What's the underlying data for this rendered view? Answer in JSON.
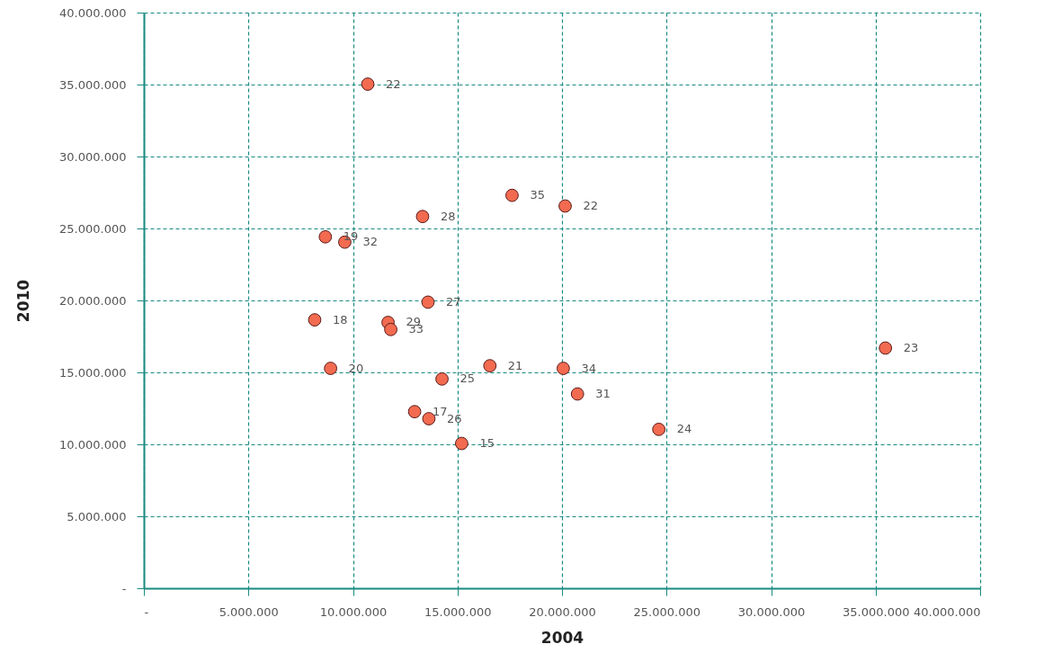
{
  "chart_data": {
    "type": "scatter",
    "xlabel": "2004",
    "ylabel": "2010",
    "x": [
      10710000,
      17610000,
      20150000,
      13330000,
      8680000,
      9610000,
      13590000,
      8170000,
      11680000,
      11810000,
      35470000,
      16550000,
      20060000,
      8930000,
      14260000,
      20740000,
      12950000,
      13630000,
      24630000,
      15200000
    ],
    "values": [
      35030000,
      27300000,
      26560000,
      25830000,
      24420000,
      24050000,
      19880000,
      18650000,
      18470000,
      17980000,
      16690000,
      15460000,
      15280000,
      15280000,
      14540000,
      13500000,
      12270000,
      11780000,
      11040000,
      10060000
    ],
    "annotations": [
      {
        "text": "22",
        "x": 10710000,
        "y": 35030000
      },
      {
        "text": "35",
        "x": 17610000,
        "y": 27300000
      },
      {
        "text": "22",
        "x": 20150000,
        "y": 26560000
      },
      {
        "text": "28",
        "x": 13330000,
        "y": 25830000
      },
      {
        "text": "19",
        "x": 8680000,
        "y": 24420000
      },
      {
        "text": "32",
        "x": 9610000,
        "y": 24050000
      },
      {
        "text": "27",
        "x": 13590000,
        "y": 19880000
      },
      {
        "text": "18",
        "x": 8170000,
        "y": 18650000
      },
      {
        "text": "29",
        "x": 11680000,
        "y": 18470000
      },
      {
        "text": "33",
        "x": 11810000,
        "y": 17980000
      },
      {
        "text": "23",
        "x": 35470000,
        "y": 16690000
      },
      {
        "text": "21",
        "x": 16550000,
        "y": 15460000
      },
      {
        "text": "34",
        "x": 20060000,
        "y": 15280000
      },
      {
        "text": "20",
        "x": 8930000,
        "y": 15280000
      },
      {
        "text": "25",
        "x": 14260000,
        "y": 14540000
      },
      {
        "text": "31",
        "x": 20740000,
        "y": 13500000
      },
      {
        "text": "17",
        "x": 12950000,
        "y": 12270000
      },
      {
        "text": "26",
        "x": 13630000,
        "y": 11780000
      },
      {
        "text": "24",
        "x": 24630000,
        "y": 11040000
      },
      {
        "text": "15",
        "x": 15200000,
        "y": 10060000
      }
    ],
    "color": "#f26b50",
    "marker": "circle",
    "grid": true,
    "xlim": [
      0,
      40000000
    ],
    "ylim": [
      0,
      40000000
    ],
    "xticks": [
      {
        "value": 0,
        "label": "-"
      },
      {
        "value": 5000000,
        "label": "5.000.000"
      },
      {
        "value": 10000000,
        "label": "10.000.000"
      },
      {
        "value": 15000000,
        "label": "15.000.000"
      },
      {
        "value": 20000000,
        "label": "20.000.000"
      },
      {
        "value": 25000000,
        "label": "25.000.000"
      },
      {
        "value": 30000000,
        "label": "30.000.000"
      },
      {
        "value": 35000000,
        "label": "35.000.000"
      },
      {
        "value": 40000000,
        "label": "40.000.000"
      }
    ],
    "yticks": [
      {
        "value": 0,
        "label": "-"
      },
      {
        "value": 5000000,
        "label": "5.000.000"
      },
      {
        "value": 10000000,
        "label": "10.000.000"
      },
      {
        "value": 15000000,
        "label": "15.000.000"
      },
      {
        "value": 20000000,
        "label": "20.000.000"
      },
      {
        "value": 25000000,
        "label": "25.000.000"
      },
      {
        "value": 30000000,
        "label": "30.000.000"
      },
      {
        "value": 35000000,
        "label": "35.000.000"
      },
      {
        "value": 40000000,
        "label": "40.000.000"
      }
    ]
  }
}
